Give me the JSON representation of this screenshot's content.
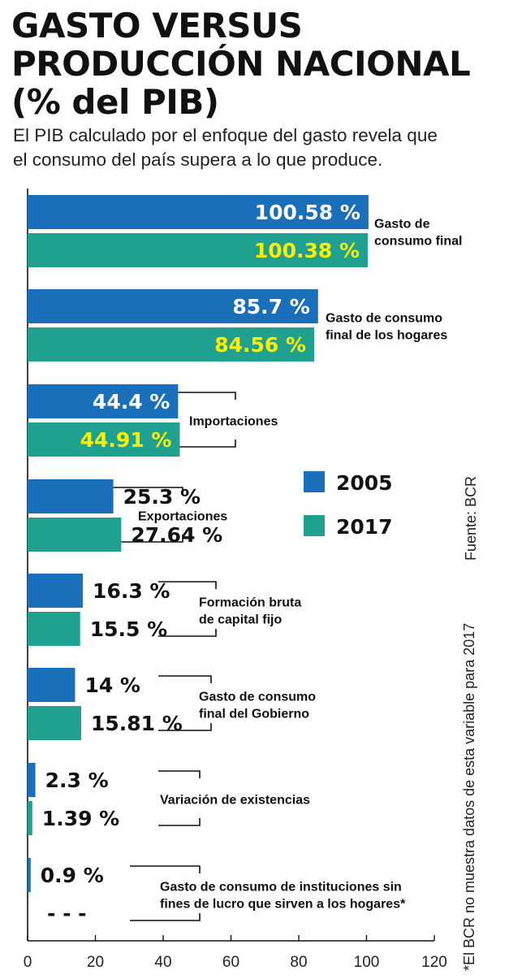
{
  "header": {
    "title_lines": [
      "GASTO VERSUS",
      "PRODUCCIÓN NACIONAL",
      "(% del PIB)"
    ],
    "subtitle_lines": [
      "El PIB calculado por el enfoque del gasto revela que",
      "el consumo del país supera a lo que produce."
    ]
  },
  "source": "Fuente: BCR",
  "footnote": "*El BCR no muestra datos de esta variable para 2017",
  "chart_data": {
    "type": "bar",
    "orientation": "horizontal",
    "categories": [
      [
        "Gasto de",
        "consumo final"
      ],
      [
        "Gasto de consumo",
        "final de los hogares"
      ],
      [
        "Importaciones"
      ],
      [
        "Exportaciones"
      ],
      [
        "Formación bruta",
        "de capital fijo"
      ],
      [
        "Gasto de consumo",
        "final del Gobierno"
      ],
      [
        "Variación de existencias"
      ],
      [
        "Gasto de consumo de instituciones sin",
        "fines de lucro que sirven a los hogares*"
      ]
    ],
    "series": [
      {
        "name": "2005",
        "color": "#1a6fba",
        "values": [
          100.58,
          85.7,
          44.4,
          25.3,
          16.3,
          14,
          2.3,
          0.9
        ],
        "labels": [
          "100.58 %",
          "85.7 %",
          "44.4 %",
          "25.3 %",
          "16.3 %",
          "14 %",
          "2.3 %",
          "0.9 %"
        ]
      },
      {
        "name": "2017",
        "color": "#20a08f",
        "values": [
          100.38,
          84.56,
          44.91,
          27.64,
          15.5,
          15.81,
          1.39,
          null
        ],
        "labels": [
          "100.38 %",
          "84.56 %",
          "44.91 %",
          "27.64 %",
          "15.5 %",
          "15.81 %",
          "1.39 %",
          "- - -"
        ]
      }
    ],
    "xlim": [
      0,
      120
    ],
    "xticks": [
      0,
      20,
      40,
      60,
      80,
      100,
      120
    ],
    "xtick_labels": [
      "0",
      "20",
      "40",
      "60",
      "80",
      "100",
      "120"
    ],
    "label_colors": {
      "inside_2005": "#ffffff",
      "inside_2017": "#ffee00",
      "outside": "#111111"
    },
    "legend": {
      "placement": "right",
      "entries": [
        "2005",
        "2017"
      ]
    }
  }
}
